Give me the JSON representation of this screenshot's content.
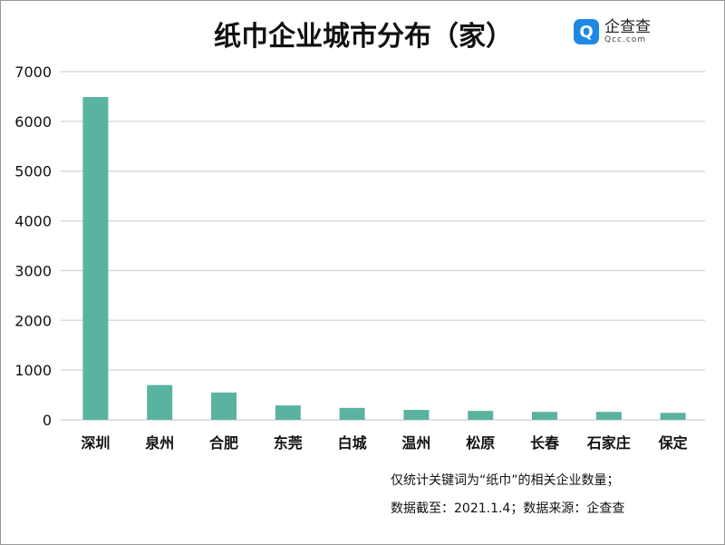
{
  "title": "纸巾企业城市分布（家）",
  "logo": {
    "icon": "qcc-logo-icon",
    "name": "企查查",
    "domain": "Qcc.com"
  },
  "notes": [
    "仅统计关键词为“纸巾”的相关企业数量；",
    "数据截至：2021.1.4；数据来源：企查查"
  ],
  "chart_data": {
    "type": "bar",
    "title": "纸巾企业城市分布（家）",
    "categories": [
      "深圳",
      "泉州",
      "合肥",
      "东莞",
      "白城",
      "温州",
      "松原",
      "长春",
      "石家庄",
      "保定"
    ],
    "values": [
      6490,
      700,
      550,
      290,
      240,
      200,
      180,
      160,
      160,
      140
    ],
    "ylim": [
      0,
      7000
    ],
    "yticks": [
      "0",
      "1000",
      "2000",
      "3000",
      "4000",
      "5000",
      "6000",
      "7000"
    ],
    "grid": true,
    "bar_color": "#5ab3a0"
  }
}
